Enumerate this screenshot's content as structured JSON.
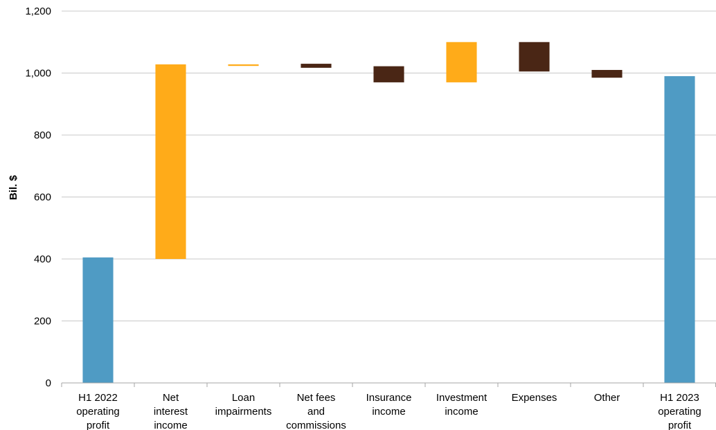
{
  "chart_data": {
    "type": "bar",
    "subtype": "waterfall",
    "title": "",
    "xlabel": "",
    "ylabel": "Bil. $",
    "ylim": [
      0,
      1200
    ],
    "yticks": [
      0,
      200,
      400,
      600,
      800,
      1000,
      1200
    ],
    "ytick_labels": [
      "0",
      "200",
      "400",
      "600",
      "800",
      "1,000",
      "1,200"
    ],
    "grid": true,
    "legend": "none",
    "colors": {
      "total": "#4f9bc4",
      "increase": "#ffab19",
      "decrease": "#4a2615",
      "grid": "#c8c8c8",
      "axis": "#a6a6a6"
    },
    "bars": [
      {
        "category": "H1 2022 operating profit",
        "label_lines": [
          "H1 2022",
          "operating",
          "profit"
        ],
        "kind": "total",
        "start": 0,
        "end": 405
      },
      {
        "category": "Net interest income",
        "label_lines": [
          "Net",
          "interest",
          "income"
        ],
        "kind": "increase",
        "start": 400,
        "end": 1028
      },
      {
        "category": "Loan impairments",
        "label_lines": [
          "Loan",
          "impairments"
        ],
        "kind": "increase",
        "start": 1023,
        "end": 1028
      },
      {
        "category": "Net fees and commissions",
        "label_lines": [
          "Net fees",
          "and",
          "commissions"
        ],
        "kind": "decrease",
        "start": 1030,
        "end": 1017
      },
      {
        "category": "Insurance income",
        "label_lines": [
          "Insurance",
          "income"
        ],
        "kind": "decrease",
        "start": 1022,
        "end": 970
      },
      {
        "category": "Investment income",
        "label_lines": [
          "Investment",
          "income"
        ],
        "kind": "increase",
        "start": 970,
        "end": 1100
      },
      {
        "category": "Expenses",
        "label_lines": [
          "Expenses"
        ],
        "kind": "decrease",
        "start": 1100,
        "end": 1005
      },
      {
        "category": "Other",
        "label_lines": [
          "Other"
        ],
        "kind": "decrease",
        "start": 1010,
        "end": 985
      },
      {
        "category": "H1 2023 operating profit",
        "label_lines": [
          "H1 2023",
          "operating",
          "profit"
        ],
        "kind": "total",
        "start": 0,
        "end": 990
      }
    ]
  }
}
